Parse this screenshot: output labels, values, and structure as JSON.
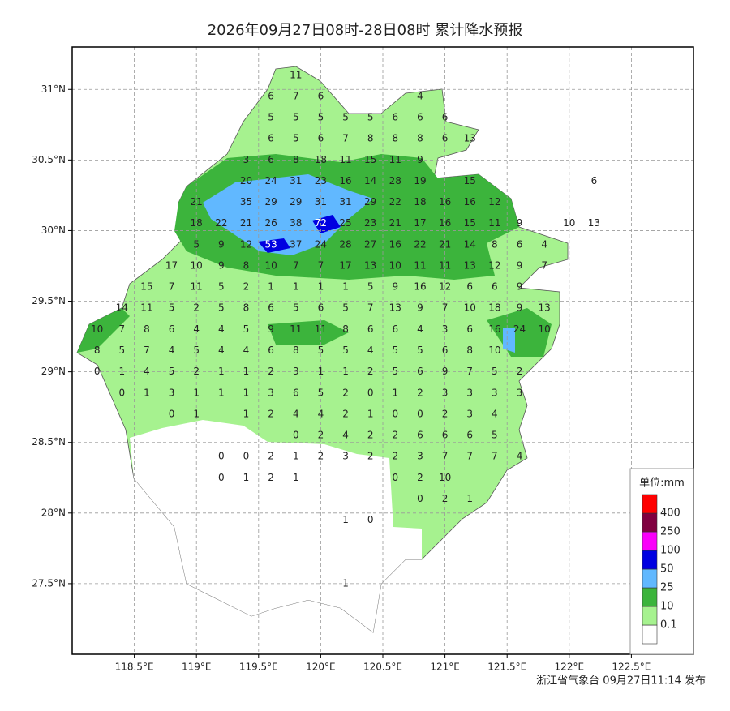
{
  "chart_data": {
    "type": "station-map",
    "title": "2026年09月27日08时-28日08时 累计降水预报",
    "footer": "浙江省气象台 09月27日11:14 发布",
    "xlim": [
      118,
      123
    ],
    "ylim": [
      27,
      31.3
    ],
    "xticks": [
      {
        "value": 118.5,
        "label": "118.5°E"
      },
      {
        "value": 119,
        "label": "119°E"
      },
      {
        "value": 119.5,
        "label": "119.5°E"
      },
      {
        "value": 120,
        "label": "120°E"
      },
      {
        "value": 120.5,
        "label": "120.5°E"
      },
      {
        "value": 121,
        "label": "121°E"
      },
      {
        "value": 121.5,
        "label": "121.5°E"
      },
      {
        "value": 122,
        "label": "122°E"
      },
      {
        "value": 122.5,
        "label": "122.5°E"
      }
    ],
    "yticks": [
      {
        "value": 27.5,
        "label": "27.5°N"
      },
      {
        "value": 28,
        "label": "28°N"
      },
      {
        "value": 28.5,
        "label": "28.5°N"
      },
      {
        "value": 29,
        "label": "29°N"
      },
      {
        "value": 29.5,
        "label": "29.5°N"
      },
      {
        "value": 30,
        "label": "30°N"
      },
      {
        "value": 30.5,
        "label": "30.5°N"
      },
      {
        "value": 31,
        "label": "31°N"
      }
    ],
    "grid": true,
    "legend": {
      "title": "单位:mm",
      "levels": [
        0.1,
        10,
        25,
        50,
        100,
        250,
        400
      ],
      "colors": [
        "#ffffff",
        "#a6f28f",
        "#3cb43c",
        "#61b8ff",
        "#0000e1",
        "#fa00fa",
        "#800040",
        "#ff0000"
      ]
    },
    "lons": [
      118.2,
      118.4,
      118.6,
      118.8,
      119.0,
      119.2,
      119.4,
      119.6,
      119.8,
      120.0,
      120.2,
      120.4,
      120.6,
      120.8,
      121.0,
      121.2,
      121.4,
      121.6,
      121.8,
      122.0,
      122.2
    ],
    "lats": [
      31.1,
      30.95,
      30.8,
      30.65,
      30.5,
      30.35,
      30.2,
      30.05,
      29.9,
      29.75,
      29.6,
      29.45,
      29.3,
      29.15,
      29.0,
      28.85,
      28.7,
      28.55,
      28.4,
      28.25,
      28.1,
      27.95,
      27.8,
      27.65,
      27.5
    ],
    "values": [
      [
        null,
        null,
        null,
        null,
        null,
        null,
        null,
        null,
        11,
        null,
        null,
        null,
        null,
        null,
        null,
        null,
        null,
        null,
        null,
        null,
        null
      ],
      [
        null,
        null,
        null,
        null,
        null,
        null,
        null,
        6,
        7,
        6,
        null,
        null,
        null,
        4,
        null,
        null,
        null,
        null,
        null,
        null,
        null
      ],
      [
        null,
        null,
        null,
        null,
        null,
        null,
        null,
        5,
        5,
        5,
        5,
        5,
        6,
        6,
        6,
        null,
        null,
        null,
        null,
        null,
        null
      ],
      [
        null,
        null,
        null,
        null,
        null,
        null,
        null,
        6,
        5,
        6,
        7,
        8,
        8,
        8,
        6,
        13,
        null,
        null,
        null,
        null,
        null
      ],
      [
        null,
        null,
        null,
        null,
        null,
        null,
        3,
        6,
        8,
        18,
        11,
        15,
        11,
        9,
        null,
        null,
        null,
        null,
        null,
        null,
        null
      ],
      [
        null,
        null,
        null,
        null,
        null,
        null,
        20,
        24,
        31,
        23,
        16,
        14,
        28,
        19,
        null,
        15,
        null,
        null,
        null,
        null,
        6
      ],
      [
        null,
        null,
        null,
        null,
        21,
        null,
        35,
        29,
        29,
        31,
        31,
        29,
        22,
        18,
        16,
        16,
        12,
        null,
        null,
        null,
        null
      ],
      [
        null,
        null,
        null,
        null,
        18,
        22,
        21,
        26,
        38,
        72,
        25,
        23,
        21,
        17,
        16,
        15,
        11,
        9,
        null,
        10,
        13
      ],
      [
        null,
        null,
        null,
        null,
        5,
        9,
        12,
        53,
        37,
        24,
        28,
        27,
        16,
        22,
        21,
        14,
        8,
        6,
        4,
        null,
        null
      ],
      [
        null,
        null,
        null,
        17,
        10,
        9,
        8,
        10,
        7,
        7,
        17,
        13,
        10,
        11,
        11,
        13,
        12,
        9,
        7,
        null,
        null
      ],
      [
        null,
        null,
        15,
        7,
        11,
        5,
        2,
        1,
        1,
        1,
        1,
        5,
        9,
        16,
        12,
        6,
        6,
        9,
        null,
        null,
        null
      ],
      [
        null,
        14,
        11,
        5,
        2,
        5,
        8,
        6,
        5,
        6,
        5,
        7,
        13,
        9,
        7,
        10,
        18,
        9,
        13,
        null,
        null
      ],
      [
        10,
        7,
        8,
        6,
        4,
        4,
        5,
        9,
        11,
        11,
        8,
        6,
        6,
        4,
        3,
        6,
        16,
        24,
        10,
        null,
        null
      ],
      [
        8,
        5,
        7,
        4,
        5,
        4,
        4,
        6,
        8,
        5,
        5,
        4,
        5,
        5,
        6,
        8,
        10,
        null,
        null,
        null,
        null
      ],
      [
        0,
        1,
        4,
        5,
        2,
        1,
        1,
        2,
        3,
        1,
        1,
        2,
        5,
        6,
        9,
        7,
        5,
        2,
        null,
        null,
        null
      ],
      [
        null,
        0,
        1,
        3,
        1,
        1,
        1,
        3,
        6,
        5,
        2,
        0,
        1,
        2,
        3,
        3,
        3,
        3,
        null,
        null,
        null
      ],
      [
        null,
        null,
        null,
        0,
        1,
        null,
        1,
        2,
        4,
        4,
        2,
        1,
        0,
        0,
        2,
        3,
        4,
        null,
        null,
        null,
        null
      ],
      [
        null,
        null,
        null,
        null,
        null,
        null,
        null,
        null,
        0,
        2,
        4,
        2,
        2,
        6,
        6,
        6,
        5,
        null,
        null,
        null,
        null
      ],
      [
        null,
        null,
        null,
        null,
        null,
        0,
        0,
        2,
        1,
        2,
        3,
        2,
        2,
        3,
        7,
        7,
        7,
        4,
        null,
        null,
        null
      ],
      [
        null,
        null,
        null,
        null,
        null,
        0,
        1,
        2,
        1,
        null,
        null,
        null,
        0,
        2,
        10,
        null,
        null,
        null,
        null,
        null,
        null
      ],
      [
        null,
        null,
        null,
        null,
        null,
        null,
        null,
        null,
        null,
        null,
        null,
        null,
        null,
        0,
        2,
        1,
        null,
        null,
        null,
        null,
        null
      ],
      [
        null,
        null,
        null,
        null,
        null,
        null,
        null,
        null,
        null,
        null,
        1,
        0,
        null,
        null,
        null,
        null,
        null,
        null,
        null,
        null,
        null
      ],
      [
        null,
        null,
        null,
        null,
        null,
        null,
        null,
        null,
        null,
        null,
        null,
        null,
        null,
        null,
        null,
        null,
        null,
        null,
        null,
        null,
        null
      ],
      [
        null,
        null,
        null,
        null,
        null,
        null,
        null,
        null,
        null,
        null,
        null,
        null,
        null,
        null,
        null,
        null,
        null,
        null,
        null,
        null,
        null
      ],
      [
        null,
        null,
        null,
        null,
        null,
        null,
        null,
        null,
        null,
        null,
        1,
        null,
        null,
        null,
        null,
        null,
        null,
        null,
        null,
        null,
        null
      ]
    ]
  }
}
